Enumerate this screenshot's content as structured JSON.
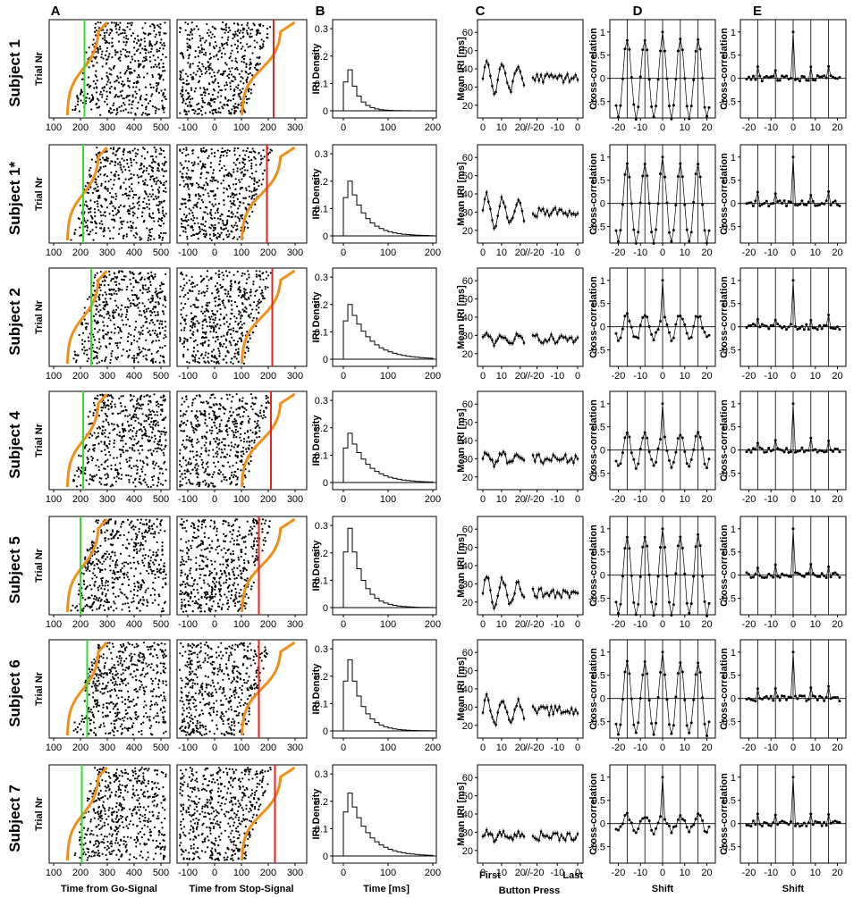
{
  "panel_letters": [
    "A",
    "B",
    "C",
    "D",
    "E"
  ],
  "rows": [
    {
      "label": "Subject 1",
      "go_line": 215,
      "stop_line": 220,
      "peak": 0.15,
      "decay": 0.6,
      "c_val": 35,
      "osc_d": 1.0
    },
    {
      "label": "Subject 1*",
      "go_line": 210,
      "stop_line": 195,
      "peak": 0.2,
      "decay": 0.75,
      "c_val": 30,
      "osc_d": 1.0
    },
    {
      "label": "Subject 2",
      "go_line": 240,
      "stop_line": 215,
      "peak": 0.2,
      "decay": 0.8,
      "c_val": 28,
      "osc_d": 0.3
    },
    {
      "label": "Subject 4",
      "go_line": 210,
      "stop_line": 210,
      "peak": 0.18,
      "decay": 0.78,
      "c_val": 30,
      "osc_d": 0.4
    },
    {
      "label": "Subject 5",
      "go_line": 200,
      "stop_line": 165,
      "peak": 0.29,
      "decay": 0.7,
      "c_val": 25,
      "osc_d": 1.0
    },
    {
      "label": "Subject 6",
      "go_line": 225,
      "stop_line": 165,
      "peak": 0.26,
      "decay": 0.7,
      "c_val": 28,
      "osc_d": 0.9
    },
    {
      "label": "Subject 7",
      "go_line": 205,
      "stop_line": 225,
      "peak": 0.23,
      "decay": 0.78,
      "c_val": 28,
      "osc_d": 0.2
    }
  ],
  "axes": {
    "trial_label": "Trial Nr",
    "go_ticks": [
      "100",
      "200",
      "300",
      "400",
      "500"
    ],
    "stop_ticks": [
      "-100",
      "0",
      "100",
      "200",
      "300"
    ],
    "iri_ylabel": "IRI Density",
    "iri_yticks": [
      "0",
      "0.1",
      "0.2",
      "0.3"
    ],
    "iri_xticks": [
      "0",
      "100",
      "200"
    ],
    "mean_ylabel": "Mean IRI [ms]",
    "mean_yticks": [
      "20",
      "30",
      "40",
      "50",
      "60"
    ],
    "mean_xticks_left": [
      "0",
      "10",
      "20"
    ],
    "mean_xticks_right": [
      "-20",
      "-10",
      "0"
    ],
    "xcorr_ylabel": "Cross-correlation",
    "xcorr_yticks": [
      "-0.5",
      "0",
      "0.5",
      "1"
    ],
    "shift_ticks": [
      "-20",
      "-10",
      "0",
      "10",
      "20"
    ]
  },
  "bottom_labels": {
    "go": "Time from Go-Signal",
    "stop": "Time from Stop-Signal",
    "time": "Time [ms]",
    "first": "First",
    "last": "Last",
    "button": "Button Press",
    "shift_d": "Shift",
    "shift_e": "Shift"
  },
  "colors": {
    "green": "#33dd33",
    "red": "#ee2222",
    "orange": "#f0901a",
    "ink": "#000000"
  }
}
